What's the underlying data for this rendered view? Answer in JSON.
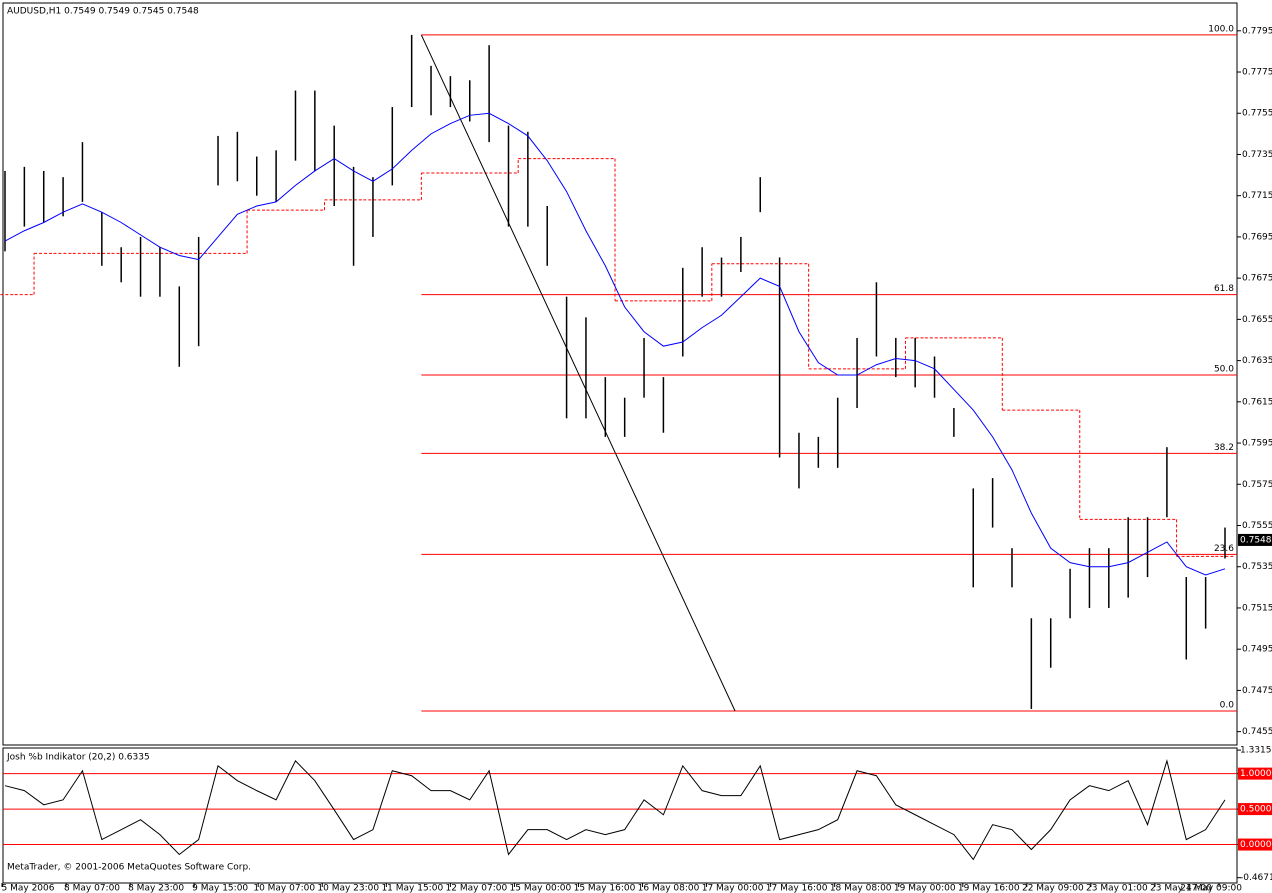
{
  "chart_data": {
    "type": "ohlc",
    "title": "AUDUSD,H1  0.7549 0.7549 0.7545 0.7548",
    "bar_color": "#000000",
    "high": [
      0.7727,
      0.7729,
      0.7727,
      0.7724,
      0.7741,
      0.7707,
      0.769,
      0.7695,
      0.769,
      0.7671,
      0.7695,
      0.7744,
      0.7746,
      0.7734,
      0.7737,
      0.7766,
      0.7766,
      0.7749,
      0.7729,
      0.7724,
      0.7758,
      0.7793,
      0.7778,
      0.7773,
      0.7771,
      0.7788,
      0.7749,
      0.7746,
      0.771,
      0.7666,
      0.7656,
      0.7627,
      0.7617,
      0.7646,
      0.7627,
      0.768,
      0.769,
      0.7685,
      0.7695,
      0.7724,
      0.7685,
      0.76,
      0.7598,
      0.7617,
      0.7646,
      0.7673,
      0.7646,
      0.7646,
      0.7637,
      0.7612,
      0.7573,
      0.7578,
      0.7544,
      0.751,
      0.751,
      0.7534,
      0.7544,
      0.7544,
      0.7559,
      0.7559,
      0.7593,
      0.753,
      0.753,
      0.7554
    ],
    "low": [
      0.7688,
      0.77,
      0.7702,
      0.7705,
      0.7712,
      0.7681,
      0.7673,
      0.7666,
      0.7666,
      0.7632,
      0.7642,
      0.772,
      0.7722,
      0.7715,
      0.7712,
      0.7732,
      0.7727,
      0.771,
      0.7681,
      0.7695,
      0.772,
      0.7758,
      0.7754,
      0.7758,
      0.7751,
      0.7741,
      0.77,
      0.77,
      0.7681,
      0.7607,
      0.7607,
      0.7598,
      0.7598,
      0.7617,
      0.76,
      0.7637,
      0.7666,
      0.7666,
      0.7678,
      0.7707,
      0.7588,
      0.7573,
      0.7583,
      0.7583,
      0.7612,
      0.7637,
      0.7627,
      0.7622,
      0.7617,
      0.7598,
      0.7525,
      0.7554,
      0.7525,
      0.7466,
      0.7486,
      0.751,
      0.7515,
      0.7515,
      0.752,
      0.753,
      0.7559,
      0.749,
      0.7505,
      0.7539
    ],
    "ma": {
      "color": "#0000ff",
      "values": [
        0.7693,
        0.7698,
        0.7702,
        0.7707,
        0.7711,
        0.7707,
        0.7702,
        0.7696,
        0.769,
        0.7686,
        0.7684,
        0.7695,
        0.7706,
        0.771,
        0.7712,
        0.772,
        0.7727,
        0.7733,
        0.7727,
        0.7722,
        0.7728,
        0.7737,
        0.7745,
        0.775,
        0.7754,
        0.7755,
        0.775,
        0.7744,
        0.7732,
        0.7717,
        0.7698,
        0.7681,
        0.7661,
        0.7649,
        0.7642,
        0.7644,
        0.7651,
        0.7657,
        0.7666,
        0.7675,
        0.7671,
        0.7649,
        0.7634,
        0.7628,
        0.7628,
        0.7633,
        0.7636,
        0.7635,
        0.7631,
        0.7621,
        0.7611,
        0.7598,
        0.7582,
        0.7561,
        0.7544,
        0.7537,
        0.7535,
        0.7535,
        0.7537,
        0.7542,
        0.7547,
        0.7535,
        0.7531,
        0.7534
      ]
    },
    "pivot": {
      "color": "#ff0000",
      "values": [
        0.7667,
        0.7667,
        0.7687,
        0.7687,
        0.7687,
        0.7687,
        0.7687,
        0.7687,
        0.7687,
        0.7687,
        0.7687,
        0.7687,
        0.7687,
        0.7708,
        0.7708,
        0.7708,
        0.7708,
        0.7713,
        0.7713,
        0.7713,
        0.7713,
        0.7713,
        0.7726,
        0.7726,
        0.7726,
        0.7726,
        0.7726,
        0.7733,
        0.7733,
        0.7733,
        0.7733,
        0.7733,
        0.7664,
        0.7664,
        0.7664,
        0.7664,
        0.7664,
        0.7682,
        0.7682,
        0.7682,
        0.7682,
        0.7682,
        0.7631,
        0.7631,
        0.7631,
        0.7631,
        0.7631,
        0.7646,
        0.7646,
        0.7646,
        0.7646,
        0.7646,
        0.7611,
        0.7611,
        0.7611,
        0.7611,
        0.7558,
        0.7558,
        0.7558,
        0.7558,
        0.7558,
        0.754,
        0.754,
        0.754
      ]
    },
    "ylim": [
      0.7449,
      0.7808
    ],
    "yticks": [
      0.7795,
      0.7775,
      0.7755,
      0.7735,
      0.7715,
      0.7695,
      0.7675,
      0.7655,
      0.7635,
      0.7615,
      0.7595,
      0.7575,
      0.7555,
      0.7535,
      0.7515,
      0.7495,
      0.7475,
      0.7455
    ],
    "last_price": 0.7548,
    "fib": {
      "color": "#ff0000",
      "levels": [
        {
          "label": "100.0",
          "value": 0.7793
        },
        {
          "label": "61.8",
          "value": 0.7667
        },
        {
          "label": "50.0",
          "value": 0.7628
        },
        {
          "label": "38.2",
          "value": 0.759
        },
        {
          "label": "23.6",
          "value": 0.7541
        },
        {
          "label": "0.0",
          "value": 0.7465
        }
      ]
    },
    "trendline": {
      "x": [
        21.5,
        37.7
      ],
      "y": [
        0.7793,
        0.7465
      ]
    },
    "x_labels": [
      "5 May 2006",
      "8 May 07:00",
      "8 May 23:00",
      "9 May 15:00",
      "10 May 07:00",
      "10 May 23:00",
      "11 May 15:00",
      "12 May 07:00",
      "15 May 00:00",
      "15 May 16:00",
      "16 May 08:00",
      "17 May 00:00",
      "17 May 16:00",
      "18 May 08:00",
      "19 May 00:00",
      "19 May 16:00",
      "22 May 09:00",
      "23 May 01:00",
      "23 May 17:00",
      "24 May 09:00"
    ],
    "indicator": {
      "title": "Josh %b Indikator (20,2) 0.6335",
      "color": "#000000",
      "level_color": "#ff0000",
      "values": [
        0.83,
        0.76,
        0.56,
        0.63,
        1.04,
        0.07,
        0.21,
        0.35,
        0.14,
        -0.14,
        0.07,
        1.11,
        0.9,
        0.76,
        0.63,
        1.18,
        0.9,
        0.49,
        0.07,
        0.21,
        1.04,
        0.97,
        0.76,
        0.76,
        0.63,
        1.04,
        -0.14,
        0.21,
        0.21,
        0.07,
        0.21,
        0.14,
        0.21,
        0.63,
        0.42,
        1.11,
        0.76,
        0.69,
        0.69,
        1.11,
        0.07,
        0.14,
        0.21,
        0.35,
        1.04,
        0.97,
        0.56,
        0.42,
        0.28,
        0.14,
        -0.21,
        0.28,
        0.21,
        -0.07,
        0.21,
        0.63,
        0.83,
        0.76,
        0.9,
        0.28,
        1.18,
        0.07,
        0.21,
        0.63
      ],
      "ylim": [
        -0.528,
        1.347
      ],
      "yticks": [
        1.3315,
        {
          "value": 1,
          "label": "1.0000"
        },
        {
          "value": 0.5,
          "label": "0.5000"
        },
        {
          "value": 0,
          "label": "0.0000"
        },
        -0.4671
      ]
    },
    "footer": "MetaTrader, © 2001-2006 MetaQuotes Software Corp."
  }
}
